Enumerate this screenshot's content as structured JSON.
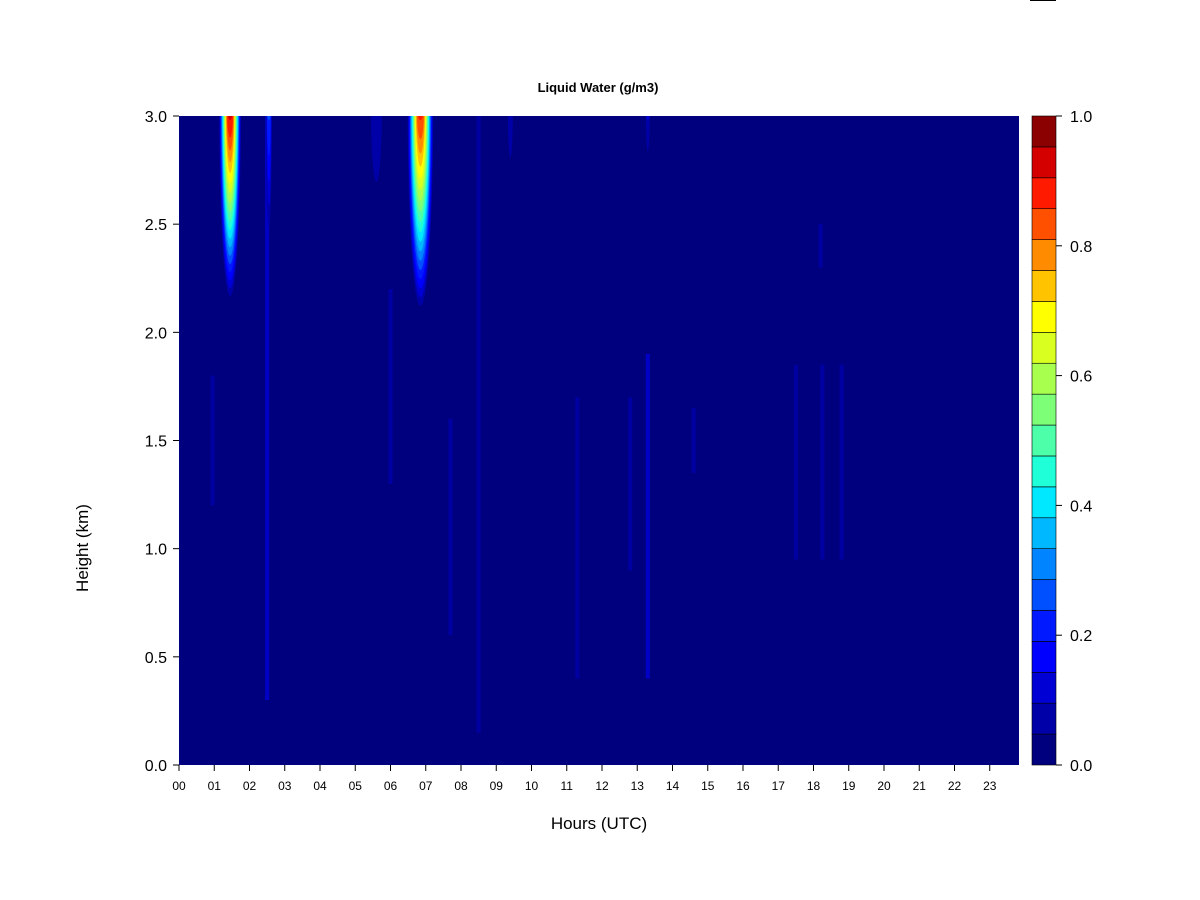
{
  "chart_data": {
    "type": "heatmap",
    "title": "Liquid Water (g/m3)",
    "xlabel": "Hours (UTC)",
    "ylabel": "Height (km)",
    "xlim": [
      0,
      24
    ],
    "ylim": [
      0.0,
      3.0
    ],
    "x_ticks": [
      "00",
      "01",
      "02",
      "03",
      "04",
      "05",
      "06",
      "07",
      "08",
      "09",
      "10",
      "11",
      "12",
      "13",
      "14",
      "15",
      "16",
      "17",
      "18",
      "19",
      "20",
      "21",
      "22",
      "23"
    ],
    "y_ticks": [
      "0.0",
      "0.5",
      "1.0",
      "1.5",
      "2.0",
      "2.5",
      "3.0"
    ],
    "colorbar": {
      "range": [
        0.0,
        1.0
      ],
      "tick_labels": [
        "0.0",
        "0.2",
        "0.4",
        "0.6",
        "0.8",
        "1.0"
      ],
      "levels": 20,
      "colors": [
        "#00007f",
        "#0000a8",
        "#0000d4",
        "#0000ff",
        "#0019ff",
        "#0050ff",
        "#0084ff",
        "#00b8ff",
        "#00e8ff",
        "#1fffd8",
        "#4dffa8",
        "#7dff78",
        "#a8ff4d",
        "#d8ff1f",
        "#ffff00",
        "#ffc300",
        "#ff8c00",
        "#ff5000",
        "#ff1a00",
        "#d40000",
        "#8b0000"
      ]
    },
    "background_value": 0.0,
    "features": [
      {
        "hour": 1.45,
        "half_width_h": 0.28,
        "base_km": 2.15,
        "top_km": 3.0,
        "max_value": 0.97
      },
      {
        "hour": 2.55,
        "half_width_h": 0.09,
        "base_km": 2.4,
        "top_km": 3.0,
        "max_value": 0.25
      },
      {
        "hour": 6.85,
        "half_width_h": 0.33,
        "base_km": 2.1,
        "top_km": 3.0,
        "max_value": 0.92
      },
      {
        "hour": 5.6,
        "half_width_h": 0.22,
        "base_km": 2.5,
        "top_km": 3.0,
        "max_value": 0.07
      },
      {
        "hour": 9.4,
        "half_width_h": 0.1,
        "base_km": 2.7,
        "top_km": 3.0,
        "max_value": 0.07
      },
      {
        "hour": 13.3,
        "half_width_h": 0.08,
        "base_km": 2.75,
        "top_km": 3.0,
        "max_value": 0.08
      }
    ],
    "streaks": [
      {
        "hour": 0.95,
        "bottom_km": 1.2,
        "top_km": 1.8,
        "value": 0.06
      },
      {
        "hour": 2.5,
        "bottom_km": 0.3,
        "top_km": 3.0,
        "value": 0.1
      },
      {
        "hour": 6.0,
        "bottom_km": 1.3,
        "top_km": 2.2,
        "value": 0.06
      },
      {
        "hour": 7.7,
        "bottom_km": 0.6,
        "top_km": 1.6,
        "value": 0.05
      },
      {
        "hour": 8.5,
        "bottom_km": 0.15,
        "top_km": 3.0,
        "value": 0.07
      },
      {
        "hour": 11.3,
        "bottom_km": 0.4,
        "top_km": 1.7,
        "value": 0.07
      },
      {
        "hour": 12.8,
        "bottom_km": 0.9,
        "top_km": 1.7,
        "value": 0.07
      },
      {
        "hour": 13.3,
        "bottom_km": 0.4,
        "top_km": 1.9,
        "value": 0.09
      },
      {
        "hour": 14.6,
        "bottom_km": 1.35,
        "top_km": 1.65,
        "value": 0.05
      },
      {
        "hour": 17.5,
        "bottom_km": 0.95,
        "top_km": 1.85,
        "value": 0.06
      },
      {
        "hour": 18.25,
        "bottom_km": 0.95,
        "top_km": 1.85,
        "value": 0.07
      },
      {
        "hour": 18.8,
        "bottom_km": 0.95,
        "top_km": 1.85,
        "value": 0.06
      },
      {
        "hour": 18.2,
        "bottom_km": 2.3,
        "top_km": 2.5,
        "value": 0.04
      }
    ]
  }
}
